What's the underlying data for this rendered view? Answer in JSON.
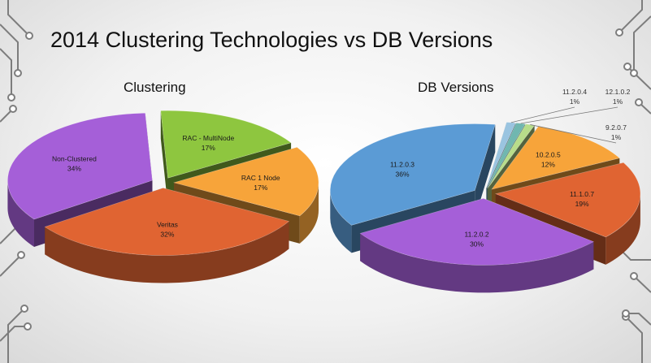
{
  "slide_title": "2014 Clustering Technologies vs DB Versions",
  "colors": {
    "purple": "#a55fd8",
    "orange_red": "#e06432",
    "orange": "#f7a43a",
    "green": "#8ec63f",
    "blue": "#5b9bd5",
    "light_blue": "#9ac4e0",
    "teal": "#70b7b0",
    "light_green": "#b8dd8a"
  },
  "chart_data": [
    {
      "type": "pie",
      "title": "Clustering",
      "slices": [
        {
          "name": "RAC - MultiNode",
          "value": 17,
          "label": "17%",
          "color": "#8ec63f"
        },
        {
          "name": "RAC 1 Node",
          "value": 17,
          "label": "17%",
          "color": "#f7a43a"
        },
        {
          "name": "Veritas",
          "value": 32,
          "label": "32%",
          "color": "#e06432"
        },
        {
          "name": "Non-Clustered",
          "value": 34,
          "label": "34%",
          "color": "#a55fd8"
        }
      ]
    },
    {
      "type": "pie",
      "title": "DB Versions",
      "slices": [
        {
          "name": "11.2.0.4",
          "value": 1,
          "label": "1%",
          "color": "#9ac4e0"
        },
        {
          "name": "12.1.0.2",
          "value": 1,
          "label": "1%",
          "color": "#70b7b0"
        },
        {
          "name": "9.2.0.7",
          "value": 1,
          "label": "1%",
          "color": "#b8dd8a"
        },
        {
          "name": "10.2.0.5",
          "value": 12,
          "label": "12%",
          "color": "#f7a43a"
        },
        {
          "name": "11.1.0.7",
          "value": 19,
          "label": "19%",
          "color": "#e06432"
        },
        {
          "name": "11.2.0.2",
          "value": 30,
          "label": "30%",
          "color": "#a55fd8"
        },
        {
          "name": "11.2.0.3",
          "value": 36,
          "label": "36%",
          "color": "#5b9bd5"
        }
      ]
    }
  ]
}
